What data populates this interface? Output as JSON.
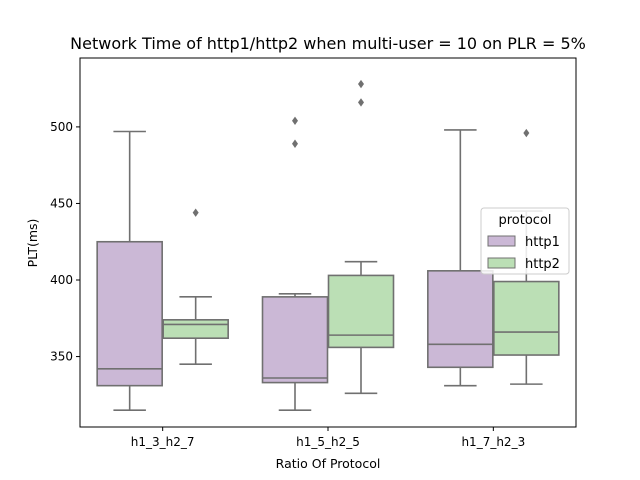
{
  "chart_data": {
    "type": "boxplot",
    "title": "Network Time of http1/http2 when multi-user = 10 on PLR = 5%",
    "xlabel": "Ratio Of Protocol",
    "ylabel": "PLT(ms)",
    "ylim": [
      304,
      545
    ],
    "yticks": [
      350,
      400,
      450,
      500
    ],
    "categories": [
      "h1_3_h2_7",
      "h1_5_h2_5",
      "h1_7_h2_3"
    ],
    "legend": {
      "title": "protocol",
      "placement": "center-right"
    },
    "grid": false,
    "series": [
      {
        "name": "http1",
        "color": "#cbb8d6",
        "boxes": [
          {
            "whisker_low": 315,
            "q1": 331,
            "median": 342,
            "q3": 425,
            "whisker_high": 497,
            "outliers": []
          },
          {
            "whisker_low": 315,
            "q1": 333,
            "median": 336,
            "q3": 389,
            "whisker_high": 391,
            "outliers": [
              489,
              504
            ]
          },
          {
            "whisker_low": 331,
            "q1": 343,
            "median": 358,
            "q3": 406,
            "whisker_high": 498,
            "outliers": []
          }
        ]
      },
      {
        "name": "http2",
        "color": "#bbdfb5",
        "boxes": [
          {
            "whisker_low": 345,
            "q1": 362,
            "median": 371,
            "q3": 374,
            "whisker_high": 389,
            "outliers": [
              444
            ]
          },
          {
            "whisker_low": 326,
            "q1": 356,
            "median": 364,
            "q3": 403,
            "whisker_high": 412,
            "outliers": [
              516,
              528
            ]
          },
          {
            "whisker_low": 332,
            "q1": 351,
            "median": 366,
            "q3": 399,
            "whisker_high": 445,
            "outliers": [
              496
            ]
          }
        ]
      }
    ]
  }
}
